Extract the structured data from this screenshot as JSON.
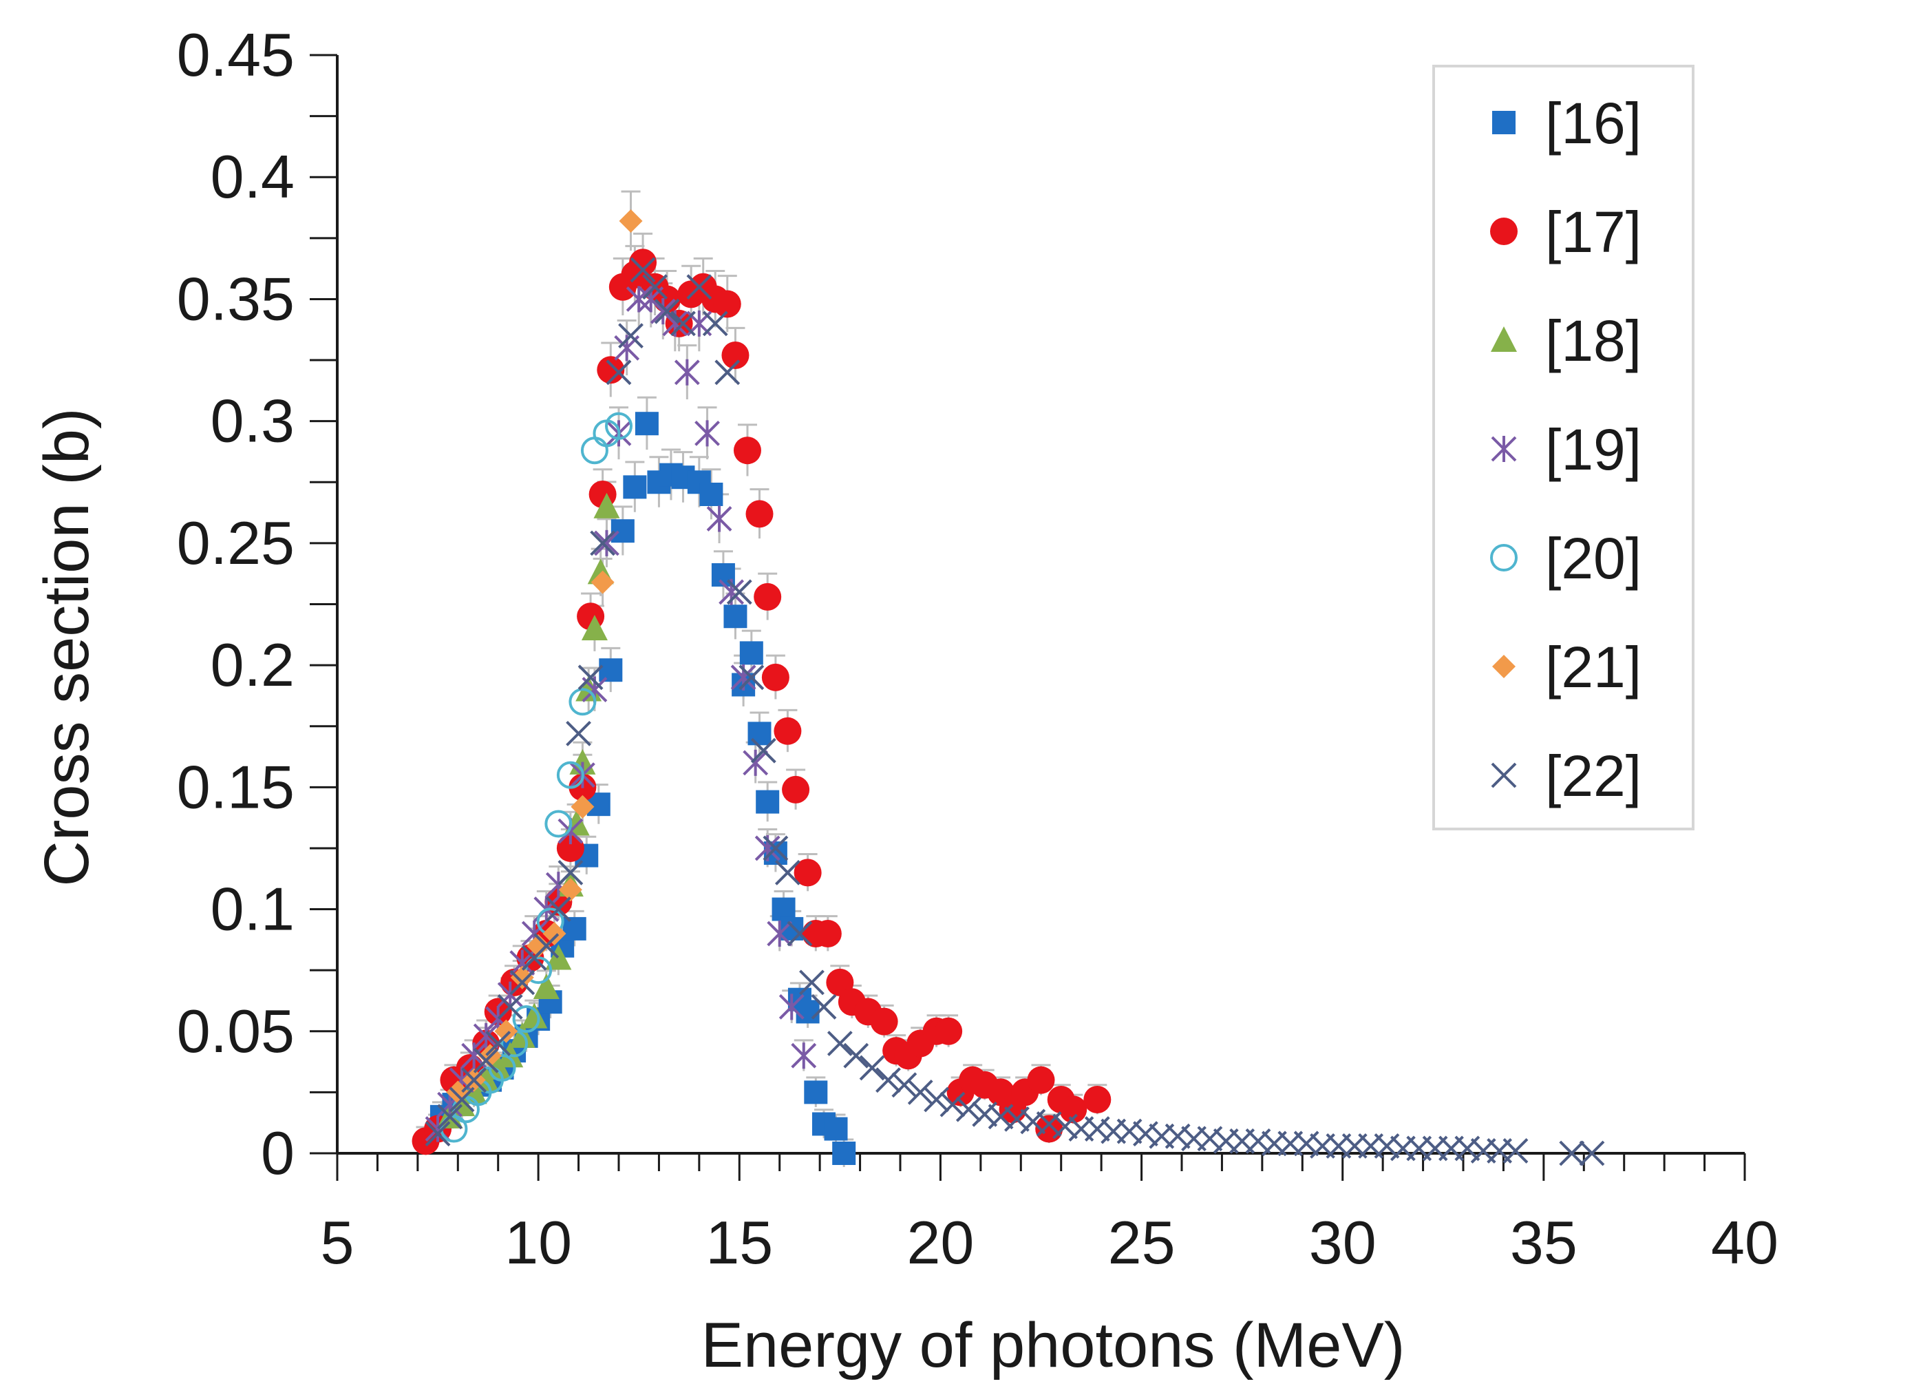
{
  "chart_data": {
    "type": "scatter",
    "title": "",
    "xlabel": "Energy of photons (MeV)",
    "ylabel": "Cross section (b)",
    "xlim": [
      5,
      40
    ],
    "ylim": [
      0,
      0.45
    ],
    "x_ticks": [
      "5",
      "10",
      "15",
      "20",
      "25",
      "30",
      "35",
      "40"
    ],
    "y_ticks": [
      "0",
      "0.05",
      "0.1",
      "0.15",
      "0.2",
      "0.25",
      "0.3",
      "0.35",
      "0.4",
      "0.45"
    ],
    "grid": false,
    "legend_position": "top-right",
    "series": [
      {
        "name": "[16]",
        "marker": "square",
        "color": "#1f6fc5",
        "points": [
          [
            7.6,
            0.015
          ],
          [
            7.9,
            0.02
          ],
          [
            8.2,
            0.025
          ],
          [
            8.5,
            0.028
          ],
          [
            8.8,
            0.03
          ],
          [
            9.1,
            0.035
          ],
          [
            9.4,
            0.042
          ],
          [
            9.7,
            0.048
          ],
          [
            10.0,
            0.055
          ],
          [
            10.3,
            0.062
          ],
          [
            10.6,
            0.085
          ],
          [
            10.9,
            0.092
          ],
          [
            11.2,
            0.122
          ],
          [
            11.5,
            0.143
          ],
          [
            11.8,
            0.198
          ],
          [
            12.1,
            0.255
          ],
          [
            12.4,
            0.273
          ],
          [
            12.7,
            0.299
          ],
          [
            13.0,
            0.275
          ],
          [
            13.3,
            0.278
          ],
          [
            13.6,
            0.277
          ],
          [
            14.0,
            0.275
          ],
          [
            14.3,
            0.27
          ],
          [
            14.6,
            0.237
          ],
          [
            14.9,
            0.22
          ],
          [
            15.1,
            0.192
          ],
          [
            15.3,
            0.205
          ],
          [
            15.5,
            0.172
          ],
          [
            15.7,
            0.144
          ],
          [
            15.9,
            0.123
          ],
          [
            16.1,
            0.1
          ],
          [
            16.3,
            0.092
          ],
          [
            16.5,
            0.063
          ],
          [
            16.7,
            0.058
          ],
          [
            16.9,
            0.025
          ],
          [
            17.1,
            0.012
          ],
          [
            17.4,
            0.01
          ],
          [
            17.6,
            0.0
          ]
        ]
      },
      {
        "name": "[17]",
        "marker": "circle",
        "color": "#e8141b",
        "points": [
          [
            7.2,
            0.005
          ],
          [
            7.5,
            0.01
          ],
          [
            7.9,
            0.03
          ],
          [
            8.3,
            0.035
          ],
          [
            8.7,
            0.045
          ],
          [
            9.0,
            0.058
          ],
          [
            9.4,
            0.07
          ],
          [
            9.8,
            0.08
          ],
          [
            10.2,
            0.09
          ],
          [
            10.5,
            0.103
          ],
          [
            10.8,
            0.125
          ],
          [
            11.1,
            0.15
          ],
          [
            11.3,
            0.22
          ],
          [
            11.6,
            0.27
          ],
          [
            11.8,
            0.321
          ],
          [
            12.1,
            0.355
          ],
          [
            12.4,
            0.36
          ],
          [
            12.6,
            0.365
          ],
          [
            12.9,
            0.355
          ],
          [
            13.2,
            0.35
          ],
          [
            13.5,
            0.34
          ],
          [
            13.8,
            0.352
          ],
          [
            14.1,
            0.355
          ],
          [
            14.4,
            0.35
          ],
          [
            14.7,
            0.348
          ],
          [
            14.9,
            0.327
          ],
          [
            15.2,
            0.288
          ],
          [
            15.5,
            0.262
          ],
          [
            15.7,
            0.228
          ],
          [
            15.9,
            0.195
          ],
          [
            16.2,
            0.173
          ],
          [
            16.4,
            0.149
          ],
          [
            16.7,
            0.115
          ],
          [
            16.9,
            0.09
          ],
          [
            17.2,
            0.09
          ],
          [
            17.5,
            0.07
          ],
          [
            17.8,
            0.062
          ],
          [
            18.2,
            0.058
          ],
          [
            18.6,
            0.054
          ],
          [
            18.9,
            0.042
          ],
          [
            19.2,
            0.04
          ],
          [
            19.5,
            0.045
          ],
          [
            19.9,
            0.05
          ],
          [
            20.2,
            0.05
          ],
          [
            20.5,
            0.025
          ],
          [
            20.8,
            0.03
          ],
          [
            21.1,
            0.028
          ],
          [
            21.5,
            0.025
          ],
          [
            21.8,
            0.018
          ],
          [
            22.1,
            0.025
          ],
          [
            22.5,
            0.03
          ],
          [
            22.7,
            0.01
          ],
          [
            23.0,
            0.022
          ],
          [
            23.3,
            0.018
          ],
          [
            23.9,
            0.022
          ]
        ]
      },
      {
        "name": "[18]",
        "marker": "triangle",
        "color": "#86b14a",
        "points": [
          [
            7.8,
            0.015
          ],
          [
            8.1,
            0.02
          ],
          [
            8.4,
            0.025
          ],
          [
            8.7,
            0.03
          ],
          [
            9.0,
            0.035
          ],
          [
            9.3,
            0.04
          ],
          [
            9.6,
            0.048
          ],
          [
            9.9,
            0.056
          ],
          [
            10.2,
            0.068
          ],
          [
            10.5,
            0.08
          ],
          [
            10.8,
            0.11
          ],
          [
            10.95,
            0.135
          ],
          [
            11.1,
            0.16
          ],
          [
            11.25,
            0.19
          ],
          [
            11.4,
            0.215
          ],
          [
            11.55,
            0.238
          ],
          [
            11.7,
            0.265
          ]
        ]
      },
      {
        "name": "[19]",
        "marker": "asterisk",
        "color": "#7a5aa6",
        "points": [
          [
            7.5,
            0.01
          ],
          [
            7.8,
            0.02
          ],
          [
            8.1,
            0.03
          ],
          [
            8.4,
            0.04
          ],
          [
            8.7,
            0.048
          ],
          [
            9.0,
            0.055
          ],
          [
            9.3,
            0.065
          ],
          [
            9.6,
            0.078
          ],
          [
            9.9,
            0.09
          ],
          [
            10.2,
            0.1
          ],
          [
            10.5,
            0.11
          ],
          [
            10.8,
            0.132
          ],
          [
            11.1,
            0.155
          ],
          [
            11.4,
            0.19
          ],
          [
            11.7,
            0.25
          ],
          [
            12.0,
            0.295
          ],
          [
            12.2,
            0.33
          ],
          [
            12.5,
            0.35
          ],
          [
            12.8,
            0.35
          ],
          [
            13.1,
            0.345
          ],
          [
            13.4,
            0.34
          ],
          [
            13.7,
            0.32
          ],
          [
            14.0,
            0.34
          ],
          [
            14.2,
            0.295
          ],
          [
            14.5,
            0.26
          ],
          [
            14.8,
            0.23
          ],
          [
            15.1,
            0.195
          ],
          [
            15.4,
            0.16
          ],
          [
            15.7,
            0.125
          ],
          [
            16.0,
            0.09
          ],
          [
            16.3,
            0.06
          ],
          [
            16.6,
            0.04
          ]
        ]
      },
      {
        "name": "[20]",
        "marker": "open-circle",
        "color": "#4fb5cf",
        "points": [
          [
            7.9,
            0.01
          ],
          [
            8.2,
            0.018
          ],
          [
            8.5,
            0.025
          ],
          [
            8.8,
            0.03
          ],
          [
            9.1,
            0.035
          ],
          [
            9.4,
            0.045
          ],
          [
            9.7,
            0.055
          ],
          [
            10.0,
            0.075
          ],
          [
            10.3,
            0.095
          ],
          [
            10.5,
            0.135
          ],
          [
            10.8,
            0.155
          ],
          [
            11.1,
            0.185
          ],
          [
            11.4,
            0.288
          ],
          [
            11.7,
            0.295
          ],
          [
            12.0,
            0.298
          ]
        ]
      },
      {
        "name": "[21]",
        "marker": "diamond",
        "color": "#f29a4a",
        "points": [
          [
            8.0,
            0.025
          ],
          [
            8.4,
            0.03
          ],
          [
            8.8,
            0.04
          ],
          [
            9.2,
            0.05
          ],
          [
            9.6,
            0.072
          ],
          [
            10.0,
            0.085
          ],
          [
            10.4,
            0.09
          ],
          [
            10.8,
            0.108
          ],
          [
            11.1,
            0.142
          ],
          [
            11.6,
            0.234
          ],
          [
            12.3,
            0.382
          ]
        ]
      },
      {
        "name": "[22]",
        "marker": "x",
        "color": "#4d5d85",
        "points": [
          [
            7.5,
            0.008
          ],
          [
            7.8,
            0.015
          ],
          [
            8.1,
            0.022
          ],
          [
            8.4,
            0.03
          ],
          [
            8.7,
            0.038
          ],
          [
            9.0,
            0.045
          ],
          [
            9.3,
            0.06
          ],
          [
            9.6,
            0.07
          ],
          [
            9.9,
            0.08
          ],
          [
            10.2,
            0.085
          ],
          [
            10.5,
            0.1
          ],
          [
            10.8,
            0.115
          ],
          [
            11.0,
            0.172
          ],
          [
            11.3,
            0.195
          ],
          [
            11.6,
            0.25
          ],
          [
            12.0,
            0.32
          ],
          [
            12.3,
            0.335
          ],
          [
            12.6,
            0.362
          ],
          [
            12.9,
            0.355
          ],
          [
            13.2,
            0.345
          ],
          [
            13.6,
            0.34
          ],
          [
            14.0,
            0.355
          ],
          [
            14.4,
            0.34
          ],
          [
            14.7,
            0.32
          ],
          [
            15.0,
            0.23
          ],
          [
            15.3,
            0.195
          ],
          [
            15.6,
            0.165
          ],
          [
            15.9,
            0.125
          ],
          [
            16.2,
            0.115
          ],
          [
            16.5,
            0.09
          ],
          [
            16.8,
            0.07
          ],
          [
            17.1,
            0.06
          ],
          [
            17.5,
            0.045
          ],
          [
            17.9,
            0.04
          ],
          [
            18.3,
            0.035
          ],
          [
            18.7,
            0.03
          ],
          [
            19.1,
            0.028
          ],
          [
            19.5,
            0.025
          ],
          [
            19.9,
            0.022
          ],
          [
            20.3,
            0.02
          ],
          [
            20.7,
            0.018
          ],
          [
            21.1,
            0.016
          ],
          [
            21.5,
            0.015
          ],
          [
            21.9,
            0.014
          ],
          [
            22.3,
            0.013
          ],
          [
            22.7,
            0.012
          ],
          [
            23.1,
            0.011
          ],
          [
            23.5,
            0.01
          ],
          [
            23.9,
            0.01
          ],
          [
            24.3,
            0.009
          ],
          [
            24.7,
            0.009
          ],
          [
            25.1,
            0.008
          ],
          [
            25.5,
            0.007
          ],
          [
            25.9,
            0.007
          ],
          [
            26.3,
            0.006
          ],
          [
            26.7,
            0.006
          ],
          [
            27.1,
            0.005
          ],
          [
            27.5,
            0.005
          ],
          [
            27.9,
            0.005
          ],
          [
            28.3,
            0.004
          ],
          [
            28.7,
            0.004
          ],
          [
            29.1,
            0.004
          ],
          [
            29.5,
            0.003
          ],
          [
            29.9,
            0.003
          ],
          [
            30.3,
            0.003
          ],
          [
            30.7,
            0.003
          ],
          [
            31.1,
            0.003
          ],
          [
            31.5,
            0.002
          ],
          [
            31.9,
            0.002
          ],
          [
            32.3,
            0.002
          ],
          [
            32.7,
            0.002
          ],
          [
            33.1,
            0.002
          ],
          [
            33.5,
            0.001
          ],
          [
            33.9,
            0.001
          ],
          [
            34.3,
            0.001
          ],
          [
            35.7,
            0.0
          ],
          [
            36.2,
            0.0
          ]
        ]
      }
    ]
  }
}
